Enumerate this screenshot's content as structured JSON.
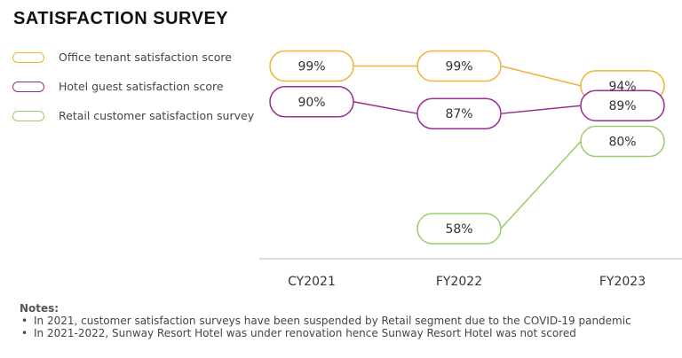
{
  "chart_data": {
    "type": "line",
    "title": "SATISFACTION SURVEY",
    "categories": [
      "CY2021",
      "FY2022",
      "FY2023"
    ],
    "series": [
      {
        "name": "Office tenant satisfaction score",
        "color": "#F2B233",
        "values": [
          99,
          99,
          94
        ],
        "labels": [
          "99%",
          "99%",
          "94%"
        ]
      },
      {
        "name": "Hotel guest satisfaction score",
        "color": "#9B2C8F",
        "values": [
          90,
          87,
          89
        ],
        "labels": [
          "90%",
          "87%",
          "89%"
        ]
      },
      {
        "name": "Retail customer satisfaction survey",
        "color": "#9BCB6A",
        "values": [
          null,
          58,
          80
        ],
        "labels": [
          null,
          "58%",
          "80%"
        ]
      }
    ],
    "xlabel": "",
    "ylabel": "",
    "grid": false,
    "legend_position": "top-left"
  },
  "notes": {
    "title": "Notes:",
    "items": [
      "In 2021, customer satisfaction surveys have been suspended by Retail segment due to the COVID-19 pandemic",
      "In 2021-2022, Sunway Resort Hotel was under renovation hence Sunway Resort Hotel was not scored"
    ]
  }
}
